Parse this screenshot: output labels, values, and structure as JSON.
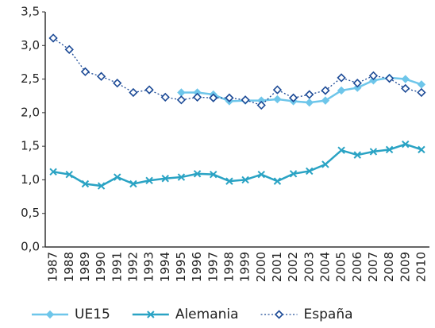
{
  "chart_data": {
    "type": "line",
    "categories": [
      "1987",
      "1988",
      "1989",
      "1990",
      "1991",
      "1992",
      "1993",
      "1994",
      "1995",
      "1996",
      "1997",
      "1998",
      "1999",
      "2000",
      "2001",
      "2002",
      "2003",
      "2004",
      "2005",
      "2006",
      "2007",
      "2008",
      "2009",
      "2010"
    ],
    "series": [
      {
        "name": "UE15",
        "color": "#6ec6ea",
        "marker": "diamond",
        "dash": "solid",
        "values": [
          null,
          null,
          null,
          null,
          null,
          null,
          null,
          null,
          2.3,
          2.3,
          2.27,
          2.17,
          2.18,
          2.18,
          2.2,
          2.17,
          2.15,
          2.18,
          2.33,
          2.37,
          2.48,
          2.52,
          2.5,
          2.42
        ]
      },
      {
        "name": "Alemania",
        "color": "#2aa3c4",
        "marker": "x",
        "dash": "solid",
        "values": [
          1.12,
          1.08,
          0.94,
          0.91,
          1.04,
          0.94,
          0.99,
          1.02,
          1.04,
          1.09,
          1.08,
          0.98,
          1.0,
          1.08,
          0.98,
          1.09,
          1.13,
          1.23,
          1.44,
          1.37,
          1.42,
          1.45,
          1.53,
          1.45
        ]
      },
      {
        "name": "España",
        "color": "#1c4a96",
        "marker": "open-diamond",
        "dash": "dotted",
        "values": [
          3.11,
          2.94,
          2.61,
          2.54,
          2.44,
          2.3,
          2.34,
          2.23,
          2.19,
          2.23,
          2.22,
          2.22,
          2.19,
          2.11,
          2.34,
          2.22,
          2.27,
          2.33,
          2.52,
          2.44,
          2.55,
          2.51,
          2.36,
          2.3
        ]
      }
    ],
    "ylim": [
      0,
      3.5
    ],
    "yticks": [
      {
        "value": 0,
        "label": "0,0"
      },
      {
        "value": 0.5,
        "label": "0,5"
      },
      {
        "value": 1,
        "label": "1,0"
      },
      {
        "value": 1.5,
        "label": "1,5"
      },
      {
        "value": 2,
        "label": "2,0"
      },
      {
        "value": 2.5,
        "label": "2,5"
      },
      {
        "value": 3,
        "label": "3,0"
      },
      {
        "value": 3.5,
        "label": "3,5"
      }
    ],
    "grid": false,
    "legend": "bottom"
  }
}
